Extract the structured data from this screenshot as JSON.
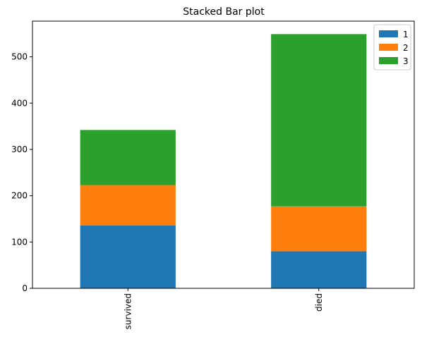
{
  "chart_data": {
    "type": "bar",
    "stacked": true,
    "title": "Stacked Bar plot",
    "xlabel": "",
    "ylabel": "",
    "categories": [
      "survived",
      "died"
    ],
    "series": [
      {
        "name": "1",
        "color": "#1f77b4",
        "values": [
          136,
          80
        ]
      },
      {
        "name": "2",
        "color": "#ff7f0e",
        "values": [
          87,
          97
        ]
      },
      {
        "name": "3",
        "color": "#2ca02c",
        "values": [
          119,
          372
        ]
      }
    ],
    "ylim": [
      0,
      577
    ],
    "yticks": [
      0,
      100,
      200,
      300,
      400,
      500
    ],
    "legend_position": "top-right",
    "grid": false
  }
}
